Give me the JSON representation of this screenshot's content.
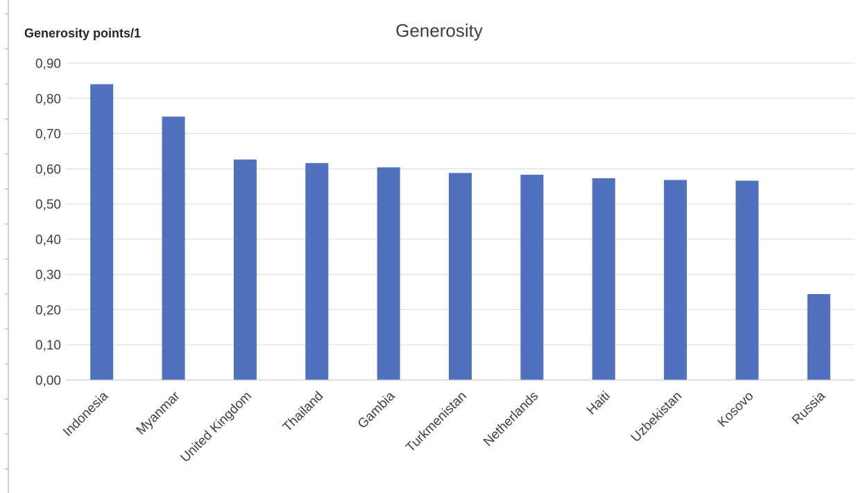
{
  "chart_data": {
    "type": "bar",
    "title": "Generosity",
    "ylabel": "Generosity points/1",
    "xlabel": "",
    "categories": [
      "Indonesia",
      "Myanmar",
      "United Kingdom",
      "Thailand",
      "Gambia",
      "Turkmenistan",
      "Netherlands",
      "Haiti",
      "Uzbekistan",
      "Kosovo",
      "Russia"
    ],
    "values": [
      0.84,
      0.748,
      0.626,
      0.616,
      0.604,
      0.588,
      0.583,
      0.573,
      0.568,
      0.566,
      0.244
    ],
    "ylim": [
      0,
      0.9
    ],
    "yticks": [
      0,
      0.1,
      0.2,
      0.3,
      0.4,
      0.5,
      0.6,
      0.7,
      0.8,
      0.9
    ],
    "ytick_labels": [
      "0,00",
      "0,10",
      "0,20",
      "0,30",
      "0,40",
      "0,50",
      "0,60",
      "0,70",
      "0,80",
      "0,90"
    ],
    "grid": true,
    "legend": "none",
    "bar_color": "#4f71be"
  }
}
